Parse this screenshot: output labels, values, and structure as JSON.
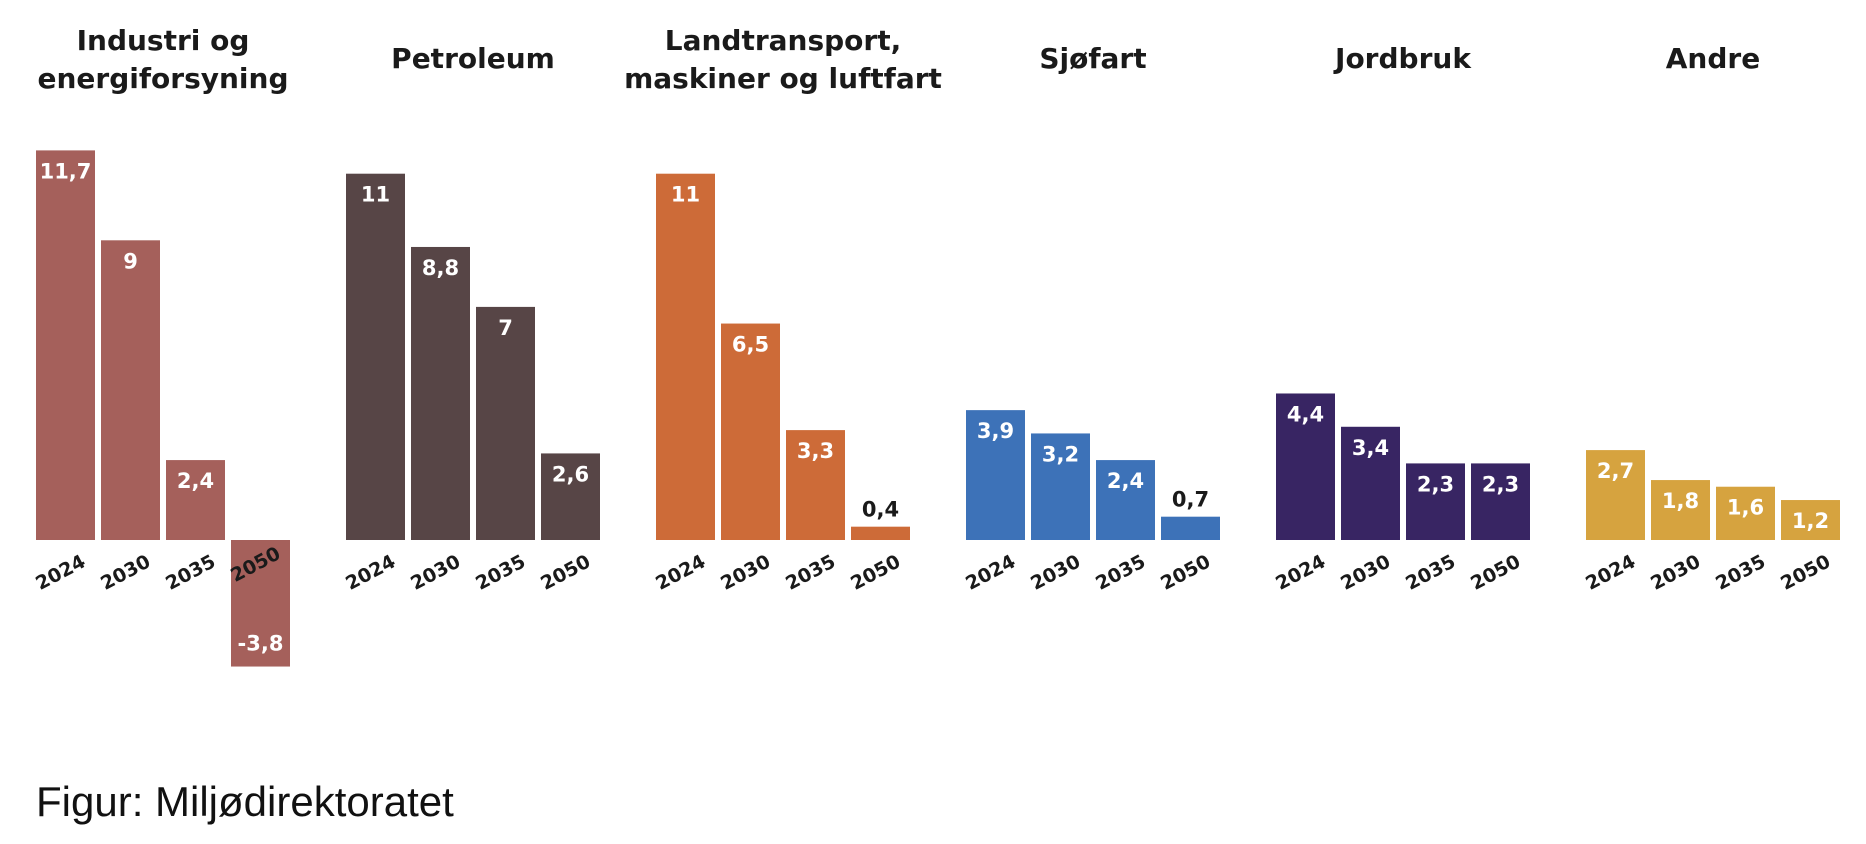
{
  "chart_data": {
    "type": "bar",
    "layout": "small-multiples",
    "categories": [
      "2024",
      "2030",
      "2035",
      "2050"
    ],
    "panels": [
      {
        "title_lines": [
          "Industri og",
          "energiforsyning"
        ],
        "color": "#a5605b",
        "values": [
          11.7,
          9,
          2.4,
          -3.8
        ],
        "value_labels": [
          "11,7",
          "9",
          "2,4",
          "-3,8"
        ]
      },
      {
        "title_lines": [
          "Petroleum"
        ],
        "color": "#574546",
        "values": [
          11,
          8.8,
          7,
          2.6
        ],
        "value_labels": [
          "11",
          "8,8",
          "7",
          "2,6"
        ]
      },
      {
        "title_lines": [
          "Landtransport,",
          "maskiner og luftfart"
        ],
        "color": "#cd6b38",
        "values": [
          11,
          6.5,
          3.3,
          0.4
        ],
        "value_labels": [
          "11",
          "6,5",
          "3,3",
          "0,4"
        ]
      },
      {
        "title_lines": [
          "Sjøfart"
        ],
        "color": "#3d72b8",
        "values": [
          3.9,
          3.2,
          2.4,
          0.7
        ],
        "value_labels": [
          "3,9",
          "3,2",
          "2,4",
          "0,7"
        ]
      },
      {
        "title_lines": [
          "Jordbruk"
        ],
        "color": "#382563",
        "values": [
          4.4,
          3.4,
          2.3,
          2.3
        ],
        "value_labels": [
          "4,4",
          "3,4",
          "2,3",
          "2,3"
        ]
      },
      {
        "title_lines": [
          "Andre"
        ],
        "color": "#d6a33f",
        "values": [
          2.7,
          1.8,
          1.6,
          1.2
        ],
        "value_labels": [
          "2,7",
          "1,8",
          "1,6",
          "1,2"
        ]
      }
    ]
  },
  "caption": "Figur: Miljødirektoratet"
}
